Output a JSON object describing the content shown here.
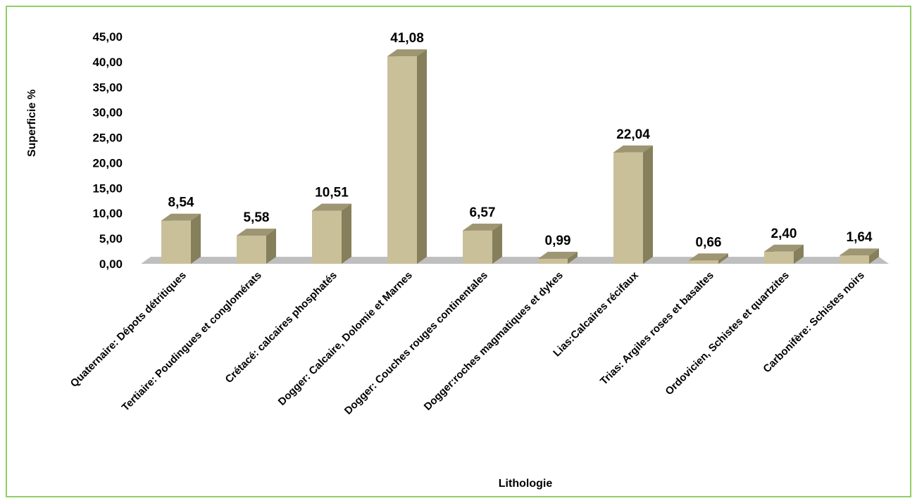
{
  "chart_data": {
    "type": "bar",
    "title": "",
    "xlabel": "Lithologie",
    "ylabel": "Superficie %",
    "ylim": [
      0,
      45
    ],
    "y_ticks": [
      "0,00",
      "5,00",
      "10,00",
      "15,00",
      "20,00",
      "25,00",
      "30,00",
      "35,00",
      "40,00",
      "45,00"
    ],
    "categories": [
      "Quaternaire: Dépots détritiques",
      "Tertiaire: Poudingues et conglomérats",
      "Crétacé: calcaires phosphatés",
      "Dogger: Calcaire, Dolomie et Marnes",
      "Dogger: Couches rouges continentales",
      "Dogger:roches magmatiques et dykes",
      "Lias:Calcaires récifaux",
      "Trias: Argiles roses et basaltes",
      "Ordovicien, Schistes et quartzites",
      "Carbonifère: Schistes noirs"
    ],
    "values": [
      8.54,
      5.58,
      10.51,
      41.08,
      6.57,
      0.99,
      22.04,
      0.66,
      2.4,
      1.64
    ],
    "value_labels": [
      "8,54",
      "5,58",
      "10,51",
      "41,08",
      "6,57",
      "0,99",
      "22,04",
      "0,66",
      "2,40",
      "1,64"
    ],
    "grid": false,
    "legend": "none",
    "colors": {
      "bar_front": "#c9c09a",
      "bar_side": "#857f5c",
      "bar_top": "#9e9672",
      "floor": "#bfbfbf",
      "frame": "#8fce6a"
    }
  }
}
